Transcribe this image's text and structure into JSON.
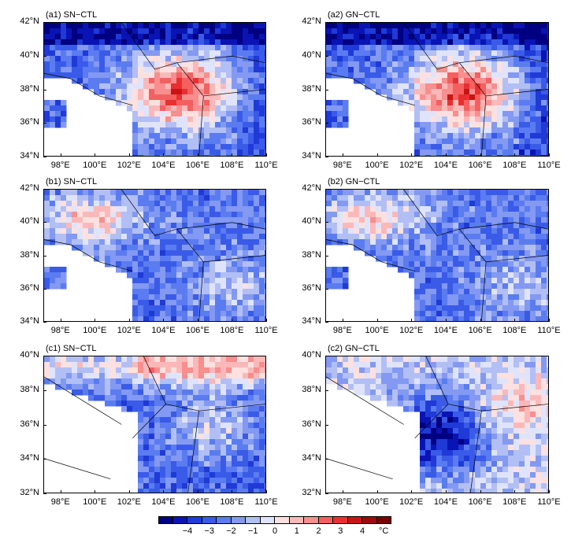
{
  "panels": [
    {
      "id": "a1",
      "title": "(a1)  SN−CTL",
      "lat_labels": [
        "42°N",
        "40°N",
        "38°N",
        "36°N",
        "34°N"
      ],
      "lon_labels": [
        "98°E",
        "100°E",
        "102°E",
        "104°E",
        "106°E",
        "108°E",
        "110°E"
      ],
      "pattern": "warm-east"
    },
    {
      "id": "a2",
      "title": "(a2)  GN−CTL",
      "lat_labels": [
        "42°N",
        "40°N",
        "38°N",
        "36°N",
        "34°N"
      ],
      "lon_labels": [
        "98°E",
        "100°E",
        "102°E",
        "104°E",
        "106°E",
        "108°E",
        "110°E"
      ],
      "pattern": "warm-east"
    },
    {
      "id": "b1",
      "title": "(b1)  SN−CTL",
      "lat_labels": [
        "42°N",
        "40°N",
        "38°N",
        "36°N",
        "34°N"
      ],
      "lon_labels": [
        "98°E",
        "100°E",
        "102°E",
        "104°E",
        "106°E",
        "108°E",
        "110°E"
      ],
      "pattern": "warm-northwest"
    },
    {
      "id": "b2",
      "title": "(b2)  GN−CTL",
      "lat_labels": [
        "42°N",
        "40°N",
        "38°N",
        "36°N",
        "34°N"
      ],
      "lon_labels": [
        "98°E",
        "100°E",
        "102°E",
        "104°E",
        "106°E",
        "108°E",
        "110°E"
      ],
      "pattern": "warm-northwest"
    },
    {
      "id": "c1",
      "title": "(c1)  SN−CTL",
      "lat_labels": [
        "40°N",
        "38°N",
        "36°N",
        "34°N",
        "32°N"
      ],
      "lon_labels": [
        "98°E",
        "100°E",
        "102°E",
        "104°E",
        "106°E",
        "108°E",
        "110°E"
      ],
      "pattern": "warm-north"
    },
    {
      "id": "c2",
      "title": "(c2)  GN−CTL",
      "lat_labels": [
        "40°N",
        "38°N",
        "36°N",
        "34°N",
        "32°N"
      ],
      "lon_labels": [
        "98°E",
        "100°E",
        "102°E",
        "104°E",
        "106°E",
        "108°E",
        "110°E"
      ],
      "pattern": "cold-center"
    }
  ],
  "colorbar": {
    "labels": [
      "−4",
      "−3",
      "−2",
      "−1",
      "0",
      "1",
      "2",
      "3",
      "4"
    ],
    "unit": "°C",
    "colors": [
      "#000080",
      "#0a14b4",
      "#1f3ad6",
      "#3a5be8",
      "#5a7cf0",
      "#8399f2",
      "#b2bff5",
      "#e0e4fb",
      "#fde0e0",
      "#fbb8b8",
      "#f88e8e",
      "#f46060",
      "#e83030",
      "#c81414",
      "#a00a0a",
      "#780000"
    ]
  }
}
